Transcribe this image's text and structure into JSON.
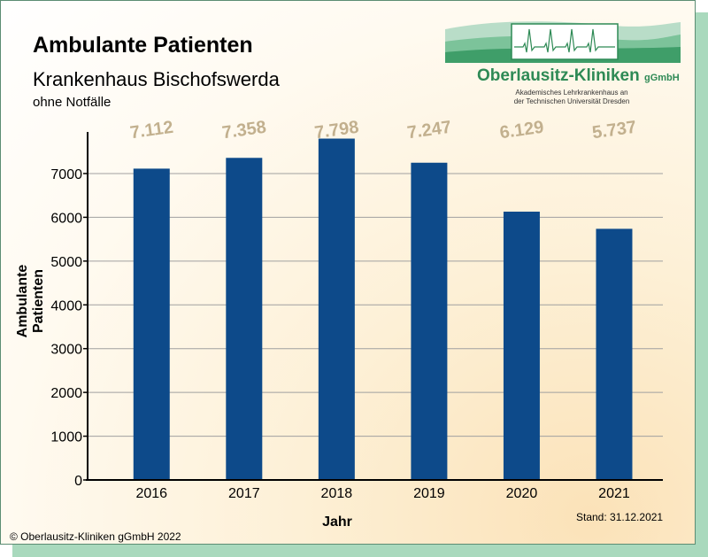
{
  "title": "Ambulante Patienten",
  "subtitle": "Krankenhaus Bischofswerda",
  "note": "ohne Notfälle",
  "copyright": "© Oberlausitz-Kliniken gGmbH 2022",
  "stand": "Stand: 31.12.2021",
  "logo": {
    "name": "Oberlausitz-Kliniken",
    "suffix": "gGmbH",
    "line1": "Akademisches Lehrkrankenhaus an",
    "line2": "der Technischen Universität Dresden"
  },
  "colors": {
    "bar": "#0d4a8a",
    "value_label": "#c2b08e",
    "accent": "#2e8a55"
  },
  "chart_data": {
    "type": "bar",
    "title": "Ambulante Patienten",
    "xlabel": "Jahr",
    "ylabel": "Ambulante Patienten",
    "categories": [
      "2016",
      "2017",
      "2018",
      "2019",
      "2020",
      "2021"
    ],
    "values": [
      7112,
      7358,
      7798,
      7247,
      6129,
      5737
    ],
    "value_labels": [
      "7.112",
      "7.358",
      "7.798",
      "7.247",
      "6.129",
      "5.737"
    ],
    "ylim": [
      0,
      8000
    ],
    "yticks": [
      0,
      1000,
      2000,
      3000,
      4000,
      5000,
      6000,
      7000
    ],
    "grid": true,
    "legend": "none"
  }
}
